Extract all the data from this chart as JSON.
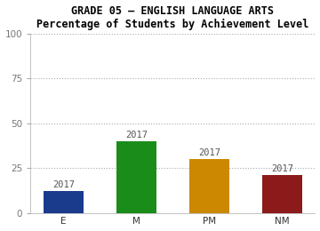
{
  "title_line1": "GRADE 05 – ENGLISH LANGUAGE ARTS",
  "title_line2": "Percentage of Students by Achievement Level",
  "categories": [
    "E",
    "M",
    "PM",
    "NM"
  ],
  "values": [
    12,
    40,
    30,
    21
  ],
  "bar_colors": [
    "#1a3a8c",
    "#1a8c1a",
    "#cc8800",
    "#8c1a1a"
  ],
  "bar_labels": [
    "2017",
    "2017",
    "2017",
    "2017"
  ],
  "ylim": [
    0,
    100
  ],
  "yticks": [
    0,
    25,
    50,
    75,
    100
  ],
  "grid_color": "#aaaaaa",
  "background_color": "#ffffff",
  "title_fontsize": 8.5,
  "tick_fontsize": 7.5,
  "bar_label_fontsize": 7.5,
  "bar_width": 0.55
}
